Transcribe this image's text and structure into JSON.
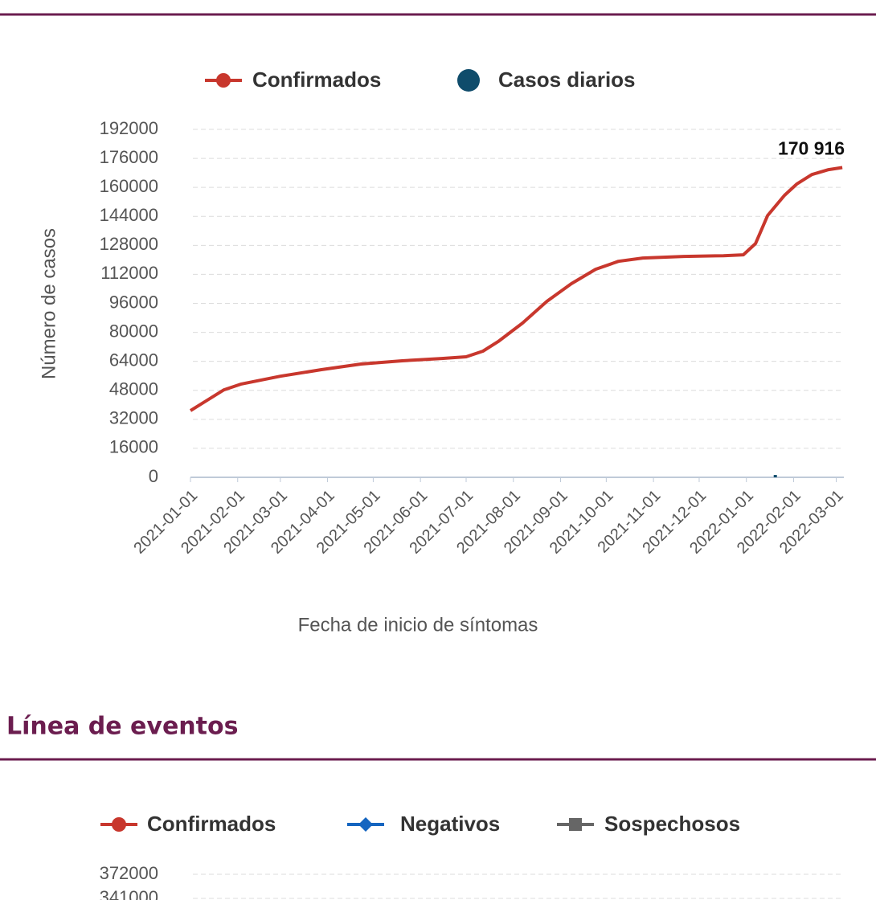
{
  "heading": "Línea de eventos",
  "chart_data": [
    {
      "type": "line",
      "series": [
        {
          "name": "Confirmados",
          "color": "#c8372d",
          "marker": "circle",
          "x": [
            "2021-01-01",
            "2021-01-23",
            "2021-02-03",
            "2021-03-01",
            "2021-03-28",
            "2021-04-23",
            "2021-05-20",
            "2021-06-15",
            "2021-07-01",
            "2021-07-12",
            "2021-07-22",
            "2021-08-07",
            "2021-08-23",
            "2021-09-08",
            "2021-09-24",
            "2021-10-09",
            "2021-10-25",
            "2021-11-21",
            "2021-12-17",
            "2021-12-30",
            "2022-01-07",
            "2022-01-15",
            "2022-01-26",
            "2022-02-03",
            "2022-02-13",
            "2022-02-24",
            "2022-03-05"
          ],
          "values": [
            36800,
            48300,
            51400,
            55800,
            59400,
            62500,
            64300,
            65600,
            66500,
            69600,
            74900,
            85100,
            97100,
            106800,
            114800,
            119200,
            121000,
            121900,
            122300,
            122800,
            129000,
            144500,
            155600,
            161800,
            167100,
            169800,
            170916
          ],
          "value_labels": [
            null,
            null,
            null,
            null,
            null,
            null,
            null,
            null,
            null,
            null,
            null,
            null,
            null,
            null,
            null,
            null,
            null,
            null,
            null,
            null,
            null,
            null,
            null,
            null,
            null,
            null,
            "170 916"
          ]
        },
        {
          "name": "Casos diarios",
          "color": "#0f4c6b",
          "marker": "dot",
          "x": [
            "2022-01-20"
          ],
          "values": [
            1300
          ]
        }
      ],
      "xlabel": "Fecha de inicio de síntomas",
      "ylabel": "Número de casos",
      "xlim": [
        "2021-01-01",
        "2022-03-06"
      ],
      "xticks": [
        "2021-01-01",
        "2021-02-01",
        "2021-03-01",
        "2021-04-01",
        "2021-05-01",
        "2021-06-01",
        "2021-07-01",
        "2021-08-01",
        "2021-09-01",
        "2021-10-01",
        "2021-11-01",
        "2021-12-01",
        "2022-01-01",
        "2022-02-01",
        "2022-03-01"
      ],
      "ylim": [
        0,
        192000
      ],
      "yticks": [
        0,
        16000,
        32000,
        48000,
        64000,
        80000,
        96000,
        112000,
        128000,
        144000,
        160000,
        176000,
        192000
      ],
      "grid": true
    },
    {
      "type": "line",
      "series": [
        {
          "name": "Confirmados",
          "color": "#c8372d",
          "marker": "circle"
        },
        {
          "name": "Negativos",
          "color": "#1565c0",
          "marker": "diamond"
        },
        {
          "name": "Sospechosos",
          "color": "#666666",
          "marker": "square"
        }
      ],
      "ylim": [
        341000,
        372000
      ],
      "yticks": [
        372000,
        341000
      ],
      "grid": true
    }
  ]
}
